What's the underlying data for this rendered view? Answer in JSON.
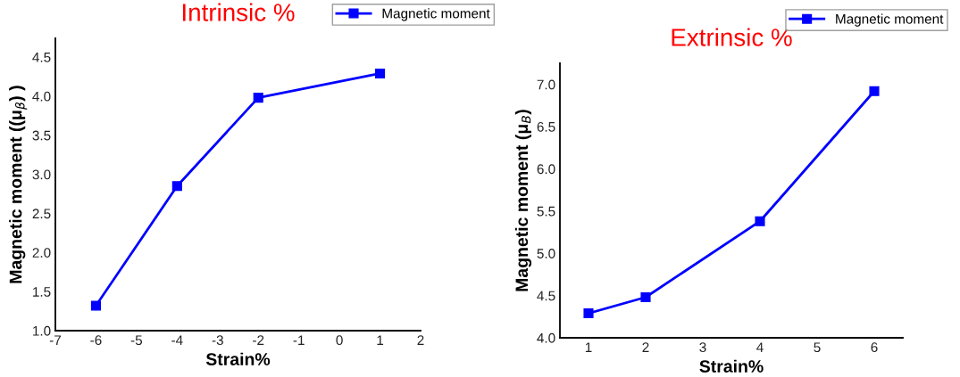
{
  "chart_data": [
    {
      "type": "line",
      "title": "Intrinsic %",
      "xlabel": "Strain%",
      "ylabel": "Magnetic moment ((μ$_{β}$) )",
      "x": [
        -6,
        -4,
        -2,
        1
      ],
      "series": [
        {
          "name": "Magnetic moment",
          "color": "#0000ff",
          "values": [
            1.32,
            2.85,
            3.98,
            4.29
          ]
        }
      ],
      "xlim": [
        -7,
        2
      ],
      "xticks": [
        -7,
        -6,
        -5,
        -4,
        -3,
        -2,
        -1,
        0,
        1,
        2
      ],
      "ylim": [
        1.0,
        4.74
      ],
      "yticks": [
        {
          "value": 1.0,
          "label": "1.0"
        },
        {
          "value": 1.5,
          "label": "1.5"
        },
        {
          "value": 2.0,
          "label": "2.0"
        },
        {
          "value": 2.5,
          "label": "2.5"
        },
        {
          "value": 3.0,
          "label": "3.0"
        },
        {
          "value": 3.5,
          "label": "3.5"
        },
        {
          "value": 4.0,
          "label": "4.0"
        },
        {
          "value": 4.5,
          "label": "4.5"
        }
      ],
      "marker": "square",
      "line_style": "solid",
      "grid": false,
      "legend": "top right"
    },
    {
      "type": "line",
      "title": "Extrinsic %",
      "xlabel": "Strain%",
      "ylabel": "Magnetic moment (μ$_{B}$)",
      "x": [
        1,
        2,
        4,
        6
      ],
      "series": [
        {
          "name": "Magnetic moment",
          "color": "#0000ff",
          "values": [
            4.29,
            4.48,
            5.38,
            6.92
          ]
        }
      ],
      "xlim": [
        0.5,
        6.5
      ],
      "xticks": [
        1,
        2,
        3,
        4,
        5,
        6
      ],
      "ylim": [
        4.0,
        7.25
      ],
      "yticks": [
        {
          "value": 4.0,
          "label": "4.0"
        },
        {
          "value": 4.5,
          "label": "4.5"
        },
        {
          "value": 5.0,
          "label": "5.0"
        },
        {
          "value": 5.5,
          "label": "5.5"
        },
        {
          "value": 6.0,
          "label": "6.0"
        },
        {
          "value": 6.5,
          "label": "6.5"
        },
        {
          "value": 7.0,
          "label": "7.0"
        }
      ],
      "marker": "square",
      "line_style": "solid",
      "grid": false,
      "legend": "top right"
    }
  ]
}
